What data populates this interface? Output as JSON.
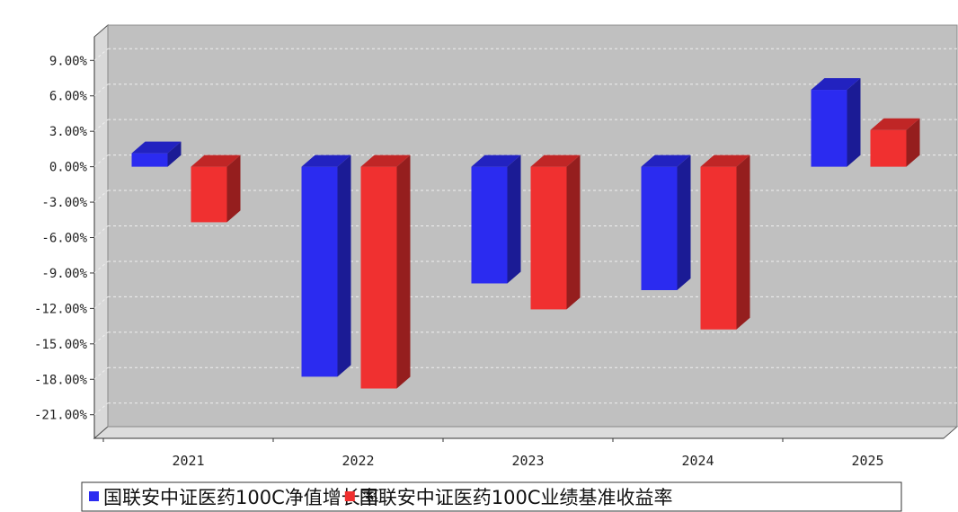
{
  "chart_data": {
    "type": "bar",
    "categories": [
      "2021",
      "2022",
      "2023",
      "2024",
      "2025"
    ],
    "series": [
      {
        "name": "国联安中证医药100C净值增长率",
        "color": "#2b2bf0",
        "values": [
          1.14,
          -17.78,
          -9.88,
          -10.45,
          6.51
        ]
      },
      {
        "name": "国联安中证医药100C业绩基准收益率",
        "color": "#f03030",
        "values": [
          -4.7,
          -18.78,
          -12.08,
          -13.78,
          3.11
        ]
      }
    ],
    "y_ticks": [
      "9.00%",
      "6.00%",
      "3.00%",
      "0.00%",
      "-3.00%",
      "-6.00%",
      "-9.00%",
      "-12.00%",
      "-15.00%",
      "-18.00%",
      "-21.00%"
    ],
    "ylim": [
      -23,
      11
    ],
    "grid": true,
    "three_d": true,
    "legend_position": "bottom",
    "plot_background": "#c0c0c0"
  }
}
